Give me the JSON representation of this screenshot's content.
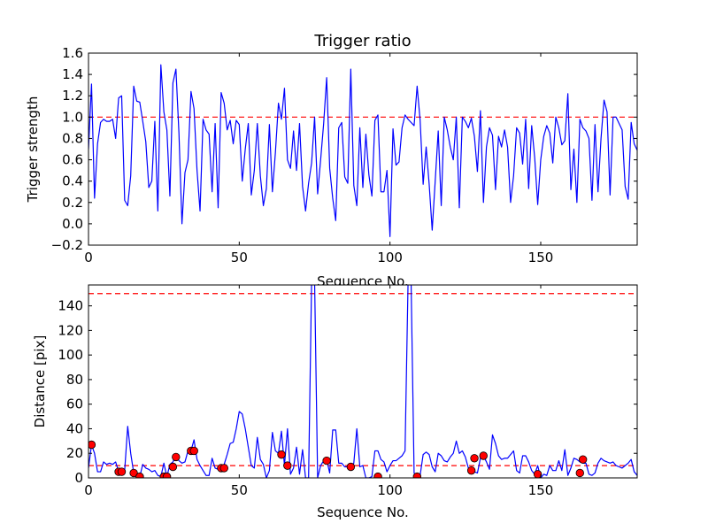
{
  "chart_data": [
    {
      "type": "line",
      "title": "Trigger ratio",
      "xlabel": "Sequence No.",
      "ylabel": "Trigger strength",
      "xlim": [
        0,
        182
      ],
      "ylim": [
        -0.2,
        1.6
      ],
      "xticks": [
        "0",
        "50",
        "100",
        "150"
      ],
      "yticks": [
        "−0.2",
        "0.0",
        "0.2",
        "0.4",
        "0.6",
        "0.8",
        "1.0",
        "1.2",
        "1.4",
        "1.6"
      ],
      "series": [
        {
          "line_color": "#0000ff",
          "x": [
            0,
            1,
            2,
            3,
            4,
            5,
            6,
            7,
            8,
            9,
            10,
            11,
            12,
            13,
            14,
            15,
            16,
            17,
            18,
            19,
            20,
            21,
            22,
            23,
            24,
            25,
            26,
            27,
            28,
            29,
            30,
            31,
            32,
            33,
            34,
            35,
            36,
            37,
            38,
            39,
            40,
            41,
            42,
            43,
            44,
            45,
            46,
            47,
            48,
            49,
            50,
            51,
            52,
            53,
            54,
            55,
            56,
            57,
            58,
            59,
            60,
            61,
            62,
            63,
            64,
            65,
            66,
            67,
            68,
            69,
            70,
            71,
            72,
            73,
            74,
            75,
            76,
            77,
            78,
            79,
            80,
            81,
            82,
            83,
            84,
            85,
            86,
            87,
            88,
            89,
            90,
            91,
            92,
            93,
            94,
            95,
            96,
            97,
            98,
            99,
            100,
            101,
            102,
            103,
            104,
            105,
            106,
            107,
            108,
            109,
            110,
            111,
            112,
            113,
            114,
            115,
            116,
            117,
            118,
            119,
            120,
            121,
            122,
            123,
            124,
            125,
            126,
            127,
            128,
            129,
            130,
            131,
            132,
            133,
            134,
            135,
            136,
            137,
            138,
            139,
            140,
            141,
            142,
            143,
            144,
            145,
            146,
            147,
            148,
            149,
            150,
            151,
            152,
            153,
            154,
            155,
            156,
            157,
            158,
            159,
            160,
            161,
            162,
            163,
            164,
            165,
            166,
            167,
            168,
            169,
            170,
            171,
            172,
            173,
            174,
            175,
            176,
            177,
            178,
            179,
            180,
            181,
            182
          ],
          "y": [
            0.7,
            1.31,
            0.24,
            0.75,
            0.95,
            0.98,
            0.96,
            0.96,
            0.98,
            0.8,
            1.18,
            1.2,
            0.22,
            0.17,
            0.45,
            1.29,
            1.15,
            1.14,
            0.96,
            0.77,
            0.34,
            0.4,
            0.96,
            0.12,
            1.49,
            1.05,
            0.88,
            0.26,
            1.32,
            1.45,
            0.85,
            0.0,
            0.48,
            0.6,
            1.24,
            1.08,
            0.5,
            0.12,
            0.98,
            0.88,
            0.84,
            0.3,
            0.94,
            0.15,
            1.23,
            1.13,
            0.88,
            0.97,
            0.75,
            0.97,
            0.93,
            0.4,
            0.7,
            0.94,
            0.27,
            0.5,
            0.94,
            0.45,
            0.17,
            0.33,
            0.93,
            0.3,
            0.67,
            1.13,
            0.98,
            1.27,
            0.6,
            0.52,
            0.87,
            0.5,
            0.94,
            0.35,
            0.12,
            0.38,
            0.57,
            1.0,
            0.28,
            0.6,
            0.94,
            1.37,
            0.52,
            0.24,
            0.03,
            0.9,
            0.95,
            0.44,
            0.38,
            1.45,
            0.36,
            0.17,
            0.9,
            0.34,
            0.84,
            0.46,
            0.26,
            0.97,
            1.02,
            0.3,
            0.3,
            0.5,
            -0.12,
            0.89,
            0.55,
            0.58,
            0.9,
            1.02,
            0.98,
            0.95,
            0.92,
            1.29,
            0.97,
            0.37,
            0.72,
            0.37,
            -0.06,
            0.4,
            0.87,
            0.17,
            1.0,
            0.88,
            0.72,
            0.6,
            1.0,
            0.15,
            1.0,
            0.96,
            0.9,
            0.99,
            0.82,
            0.49,
            1.06,
            0.2,
            0.72,
            0.9,
            0.83,
            0.32,
            0.82,
            0.72,
            0.88,
            0.72,
            0.2,
            0.45,
            0.9,
            0.85,
            0.56,
            0.98,
            0.33,
            0.92,
            0.62,
            0.18,
            0.6,
            0.82,
            0.92,
            0.85,
            0.57,
            1.0,
            0.9,
            0.74,
            0.78,
            1.22,
            0.32,
            0.7,
            0.2,
            0.98,
            0.9,
            0.87,
            0.8,
            0.22,
            0.93,
            0.3,
            0.8,
            1.16,
            1.05,
            0.27,
            1.0,
            1.0,
            0.94,
            0.88,
            0.35,
            0.23,
            0.95,
            0.75,
            0.69
          ]
        }
      ],
      "reference_lines": [
        {
          "y": 1.0,
          "color": "#ff0000",
          "style": "dashed"
        }
      ]
    },
    {
      "type": "line",
      "title": "",
      "xlabel": "Sequence No.",
      "ylabel": "Distance [pix]",
      "xlim": [
        0,
        182
      ],
      "ylim": [
        0,
        157
      ],
      "xticks": [
        "0",
        "50",
        "100",
        "150"
      ],
      "yticks": [
        "0",
        "20",
        "40",
        "60",
        "80",
        "100",
        "120",
        "140"
      ],
      "series": [
        {
          "line_color": "#0000ff",
          "x": [
            0,
            1,
            2,
            3,
            4,
            5,
            6,
            7,
            8,
            9,
            10,
            11,
            12,
            13,
            14,
            15,
            16,
            17,
            18,
            19,
            20,
            21,
            22,
            23,
            24,
            25,
            26,
            27,
            28,
            29,
            30,
            31,
            32,
            33,
            34,
            35,
            36,
            37,
            38,
            39,
            40,
            41,
            42,
            43,
            44,
            45,
            46,
            47,
            48,
            49,
            50,
            51,
            52,
            53,
            54,
            55,
            56,
            57,
            58,
            59,
            60,
            61,
            62,
            63,
            64,
            65,
            66,
            67,
            68,
            69,
            70,
            71,
            72,
            73,
            74,
            75,
            76,
            77,
            78,
            79,
            80,
            81,
            82,
            83,
            84,
            85,
            86,
            87,
            88,
            89,
            90,
            91,
            92,
            93,
            94,
            95,
            96,
            97,
            98,
            99,
            100,
            101,
            102,
            103,
            104,
            105,
            106,
            107,
            108,
            109,
            110,
            111,
            112,
            113,
            114,
            115,
            116,
            117,
            118,
            119,
            120,
            121,
            122,
            123,
            124,
            125,
            126,
            127,
            128,
            129,
            130,
            131,
            132,
            133,
            134,
            135,
            136,
            137,
            138,
            139,
            140,
            141,
            142,
            143,
            144,
            145,
            146,
            147,
            148,
            149,
            150,
            151,
            152,
            153,
            154,
            155,
            156,
            157,
            158,
            159,
            160,
            161,
            162,
            163,
            164,
            165,
            166,
            167,
            168,
            169,
            170,
            171,
            172,
            173,
            174,
            175,
            176,
            177,
            178,
            179,
            180,
            181,
            182
          ],
          "y": [
            8,
            27,
            20,
            5,
            5,
            13,
            11,
            12,
            11,
            13,
            5,
            5,
            6,
            42,
            20,
            4,
            2,
            1,
            11,
            8,
            7,
            5,
            6,
            2,
            1,
            12,
            1,
            11,
            13,
            18,
            14,
            12,
            13,
            22,
            22,
            31,
            15,
            10,
            6,
            2,
            2,
            16,
            8,
            7,
            8,
            11,
            19,
            28,
            29,
            40,
            54,
            52,
            40,
            25,
            10,
            8,
            33,
            15,
            11,
            0,
            6,
            37,
            22,
            20,
            38,
            10,
            40,
            3,
            8,
            25,
            3,
            23,
            0,
            0,
            160,
            160,
            0,
            10,
            14,
            15,
            4,
            39,
            39,
            12,
            12,
            9,
            9,
            7,
            12,
            40,
            9,
            10,
            0,
            0,
            1,
            22,
            22,
            15,
            13,
            5,
            10,
            14,
            14,
            16,
            18,
            22,
            160,
            160,
            4,
            1,
            2,
            19,
            21,
            19,
            9,
            5,
            20,
            18,
            14,
            13,
            17,
            20,
            30,
            20,
            22,
            17,
            8,
            7,
            5,
            4,
            16,
            18,
            13,
            7,
            35,
            28,
            18,
            15,
            16,
            16,
            19,
            22,
            6,
            4,
            18,
            18,
            13,
            6,
            3,
            10,
            0,
            3,
            2,
            10,
            6,
            6,
            14,
            6,
            23,
            2,
            8,
            16,
            15,
            13,
            12,
            12,
            3,
            2,
            4,
            12,
            16,
            14,
            13,
            12,
            13,
            10,
            9,
            8,
            10,
            12,
            15,
            5,
            2
          ]
        },
        {
          "marker_color": "#ff0000",
          "style": "markers",
          "x": [
            1,
            10,
            11,
            15,
            17,
            25,
            26,
            28,
            29,
            34,
            35,
            44,
            45,
            64,
            66,
            79,
            87,
            96,
            109,
            127,
            128,
            131,
            149,
            163,
            164
          ],
          "y": [
            27,
            5,
            5,
            4,
            1,
            1,
            1,
            9,
            17,
            22,
            22,
            8,
            8,
            19,
            10,
            14,
            9,
            1,
            1,
            6,
            16,
            18,
            3,
            4,
            15
          ]
        }
      ],
      "reference_lines": [
        {
          "y": 150,
          "color": "#ff0000",
          "style": "dashed"
        },
        {
          "y": 10,
          "color": "#ff0000",
          "style": "dashed"
        }
      ]
    }
  ]
}
